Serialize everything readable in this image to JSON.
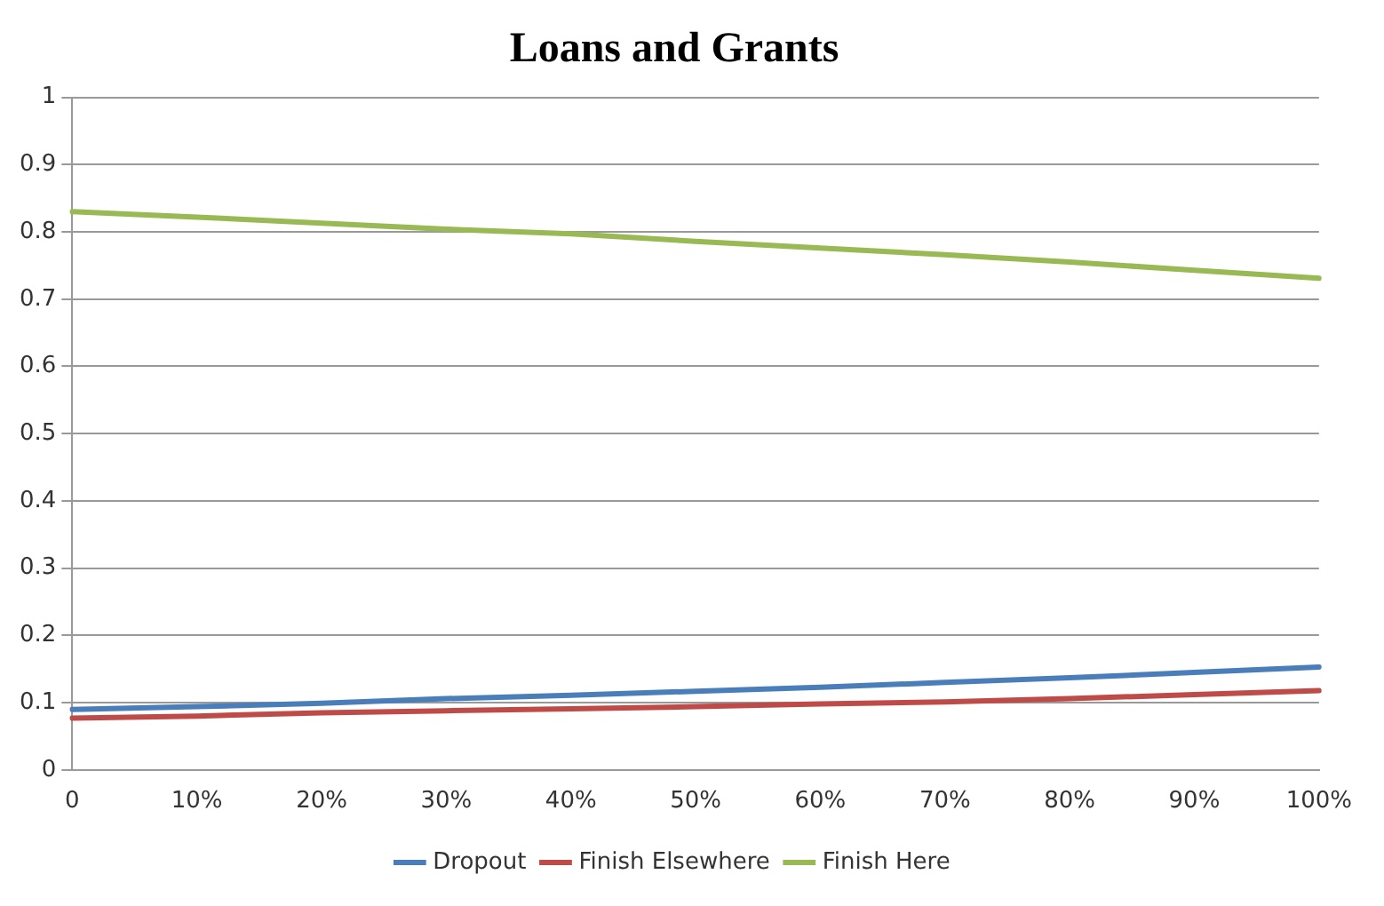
{
  "chart_data": {
    "type": "line",
    "title": "Loans and Grants",
    "categories": [
      "0",
      "10%",
      "20%",
      "30%",
      "40%",
      "50%",
      "60%",
      "70%",
      "80%",
      "90%",
      "100%"
    ],
    "series": [
      {
        "name": "Dropout",
        "color": "#4a7ebb",
        "values": [
          0.09,
          0.094,
          0.099,
          0.106,
          0.111,
          0.117,
          0.123,
          0.13,
          0.137,
          0.145,
          0.153
        ]
      },
      {
        "name": "Finish Elsewhere",
        "color": "#be4b48",
        "values": [
          0.077,
          0.08,
          0.085,
          0.088,
          0.091,
          0.094,
          0.098,
          0.101,
          0.106,
          0.112,
          0.118
        ]
      },
      {
        "name": "Finish Here",
        "color": "#98b954",
        "values": [
          0.83,
          0.822,
          0.813,
          0.804,
          0.797,
          0.786,
          0.776,
          0.766,
          0.755,
          0.743,
          0.731
        ]
      }
    ],
    "ylim": [
      0,
      1
    ],
    "yticks": [
      0,
      0.1,
      0.2,
      0.3,
      0.4,
      0.5,
      0.6,
      0.7,
      0.8,
      0.9,
      1
    ],
    "grid": "y",
    "legend": "bottom",
    "marker": "none",
    "line_style": "solid"
  }
}
